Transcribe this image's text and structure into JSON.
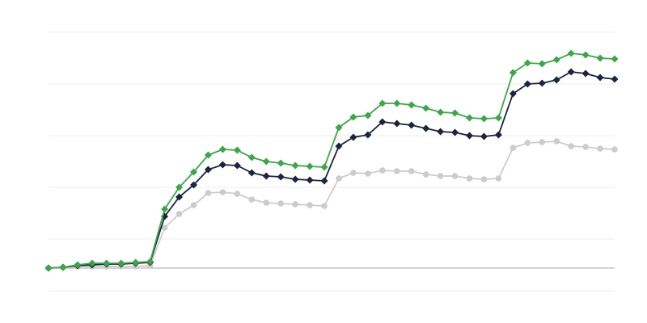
{
  "chart_data": {
    "type": "line",
    "x": [
      0,
      1,
      2,
      3,
      4,
      5,
      6,
      7,
      8,
      9,
      10,
      11,
      12,
      13,
      14,
      15,
      16,
      17,
      18,
      19,
      20,
      21,
      22,
      23,
      24,
      25,
      26,
      27,
      28,
      29,
      30,
      31,
      32,
      33,
      34,
      35,
      36,
      37,
      38,
      39
    ],
    "xlim": [
      0,
      39
    ],
    "ylim": [
      -28,
      292
    ],
    "yticks": [
      -28,
      36,
      100,
      164,
      228,
      292
    ],
    "grid": true,
    "series": [
      {
        "color": "#cccccc",
        "marker": "circle",
        "values": [
          0,
          1,
          2,
          2,
          2,
          2,
          2,
          3,
          50,
          67,
          78,
          93,
          94,
          92,
          85,
          81,
          80,
          79,
          78,
          77,
          111,
          118,
          117,
          121,
          120,
          120,
          116,
          114,
          114,
          111,
          110,
          111,
          149,
          155,
          156,
          157,
          151,
          150,
          148,
          147
        ]
      },
      {
        "color": "#1b2440",
        "marker": "diamond",
        "values": [
          0,
          1,
          3,
          4,
          5,
          5,
          6,
          7,
          64,
          88,
          103,
          122,
          128,
          127,
          118,
          114,
          113,
          110,
          109,
          108,
          151,
          162,
          165,
          181,
          179,
          177,
          173,
          169,
          168,
          164,
          163,
          165,
          216,
          228,
          229,
          233,
          243,
          241,
          236,
          234
        ]
      },
      {
        "color": "#3aa845",
        "marker": "diamond",
        "values": [
          0,
          1,
          4,
          6,
          6,
          6,
          7,
          8,
          73,
          100,
          119,
          140,
          147,
          146,
          137,
          132,
          130,
          127,
          126,
          125,
          174,
          187,
          189,
          204,
          204,
          202,
          198,
          193,
          192,
          186,
          185,
          186,
          242,
          254,
          253,
          258,
          266,
          264,
          260,
          259
        ]
      }
    ]
  }
}
